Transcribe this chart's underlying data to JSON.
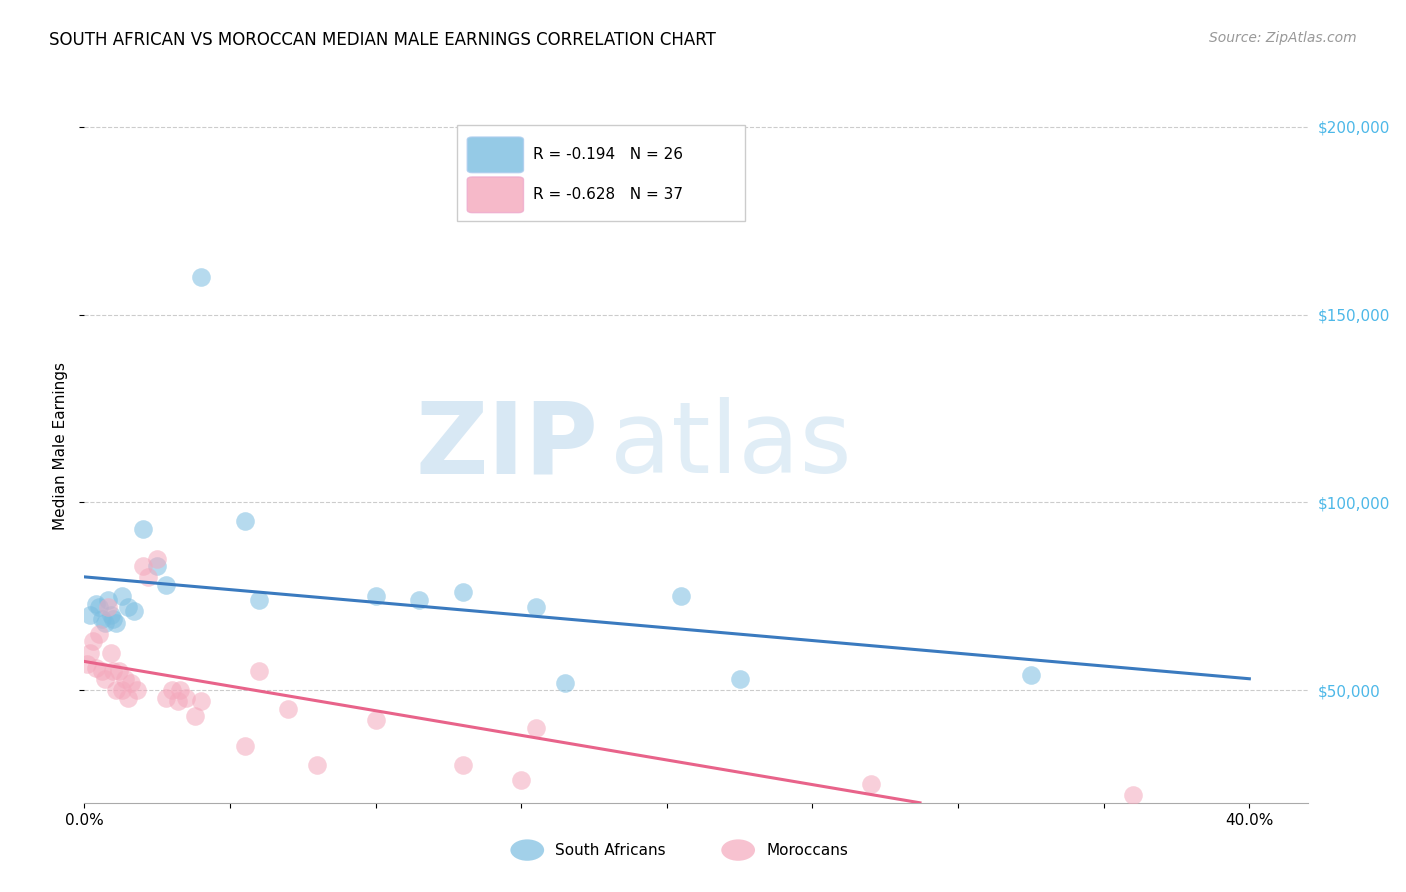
{
  "title": "SOUTH AFRICAN VS MOROCCAN MEDIAN MALE EARNINGS CORRELATION CHART",
  "source": "Source: ZipAtlas.com",
  "ylabel": "Median Male Earnings",
  "xlim": [
    0.0,
    0.42
  ],
  "ylim": [
    20000,
    210000
  ],
  "yticks": [
    50000,
    100000,
    150000,
    200000
  ],
  "ytick_labels": [
    "$50,000",
    "$100,000",
    "$150,000",
    "$200,000"
  ],
  "xticks": [
    0.0,
    0.05,
    0.1,
    0.15,
    0.2,
    0.25,
    0.3,
    0.35,
    0.4
  ],
  "xtick_labels": [
    "0.0%",
    "",
    "",
    "",
    "",
    "",
    "",
    "",
    "40.0%"
  ],
  "south_african_color": "#7bbde0",
  "moroccan_color": "#f4a8bc",
  "trend_sa_color": "#3a7abf",
  "trend_mo_color": "#e8638a",
  "sa_r": "-0.194",
  "sa_n": "26",
  "mo_r": "-0.628",
  "mo_n": "37",
  "watermark_zip": "ZIP",
  "watermark_atlas": "atlas",
  "south_africans_x": [
    0.002,
    0.004,
    0.005,
    0.006,
    0.007,
    0.008,
    0.009,
    0.01,
    0.011,
    0.013,
    0.015,
    0.017,
    0.02,
    0.025,
    0.028,
    0.04,
    0.055,
    0.06,
    0.1,
    0.115,
    0.13,
    0.155,
    0.165,
    0.205,
    0.225,
    0.325
  ],
  "south_africans_y": [
    70000,
    73000,
    72000,
    69000,
    68000,
    74000,
    70000,
    69000,
    68000,
    75000,
    72000,
    71000,
    93000,
    83000,
    78000,
    160000,
    95000,
    74000,
    75000,
    74000,
    76000,
    72000,
    52000,
    75000,
    53000,
    54000
  ],
  "moroccans_x": [
    0.001,
    0.002,
    0.003,
    0.004,
    0.005,
    0.006,
    0.007,
    0.008,
    0.009,
    0.01,
    0.011,
    0.012,
    0.013,
    0.014,
    0.015,
    0.016,
    0.018,
    0.02,
    0.022,
    0.025,
    0.028,
    0.03,
    0.032,
    0.033,
    0.035,
    0.038,
    0.04,
    0.055,
    0.06,
    0.07,
    0.08,
    0.1,
    0.13,
    0.15,
    0.155,
    0.27,
    0.36
  ],
  "moroccans_y": [
    57000,
    60000,
    63000,
    56000,
    65000,
    55000,
    53000,
    72000,
    60000,
    55000,
    50000,
    55000,
    50000,
    53000,
    48000,
    52000,
    50000,
    83000,
    80000,
    85000,
    48000,
    50000,
    47000,
    50000,
    48000,
    43000,
    47000,
    35000,
    55000,
    45000,
    30000,
    42000,
    30000,
    26000,
    40000,
    25000,
    22000
  ]
}
